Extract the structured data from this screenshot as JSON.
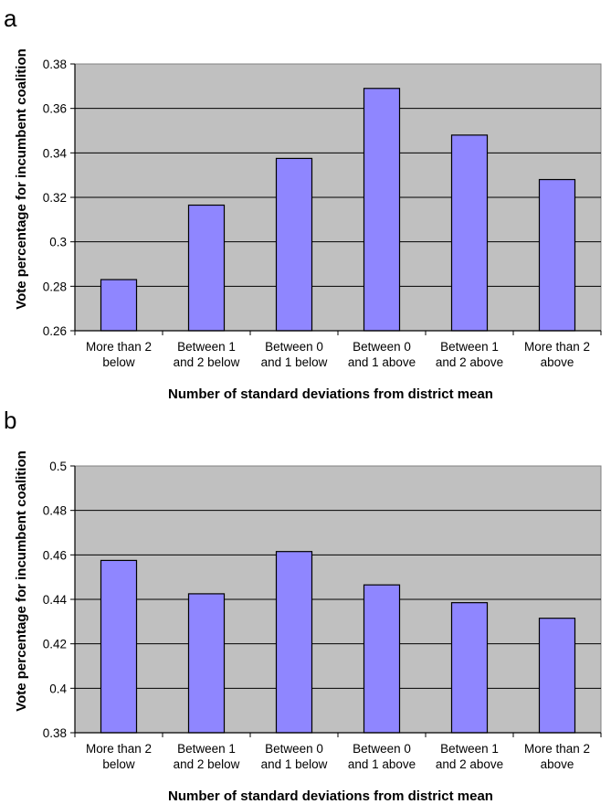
{
  "chart_data": [
    {
      "type": "bar",
      "panel_label": "a",
      "categories": [
        [
          "More than 2",
          "below"
        ],
        [
          "Between 1",
          "and 2 below"
        ],
        [
          "Between 0",
          "and 1 below"
        ],
        [
          "Between 0",
          "and 1 above"
        ],
        [
          "Between 1",
          "and 2 above"
        ],
        [
          "More than 2",
          "above"
        ]
      ],
      "values": [
        0.283,
        0.3165,
        0.3375,
        0.369,
        0.348,
        0.328
      ],
      "xlabel": "Number of standard deviations from district mean",
      "ylabel": "Vote percentage for incumbent coalition",
      "ylim": [
        0.26,
        0.38
      ],
      "yticks": [
        "0.26",
        "0.28",
        "0.3",
        "0.32",
        "0.34",
        "0.36",
        "0.38"
      ],
      "grid": true,
      "legend": "none",
      "colors": {
        "bar_fill": "#8f86ff",
        "plot_bg": "#c0c0c0",
        "gridline": "#000000"
      }
    },
    {
      "type": "bar",
      "panel_label": "b",
      "categories": [
        [
          "More than 2",
          "below"
        ],
        [
          "Between 1",
          "and 2 below"
        ],
        [
          "Between 0",
          "and 1 below"
        ],
        [
          "Between 0",
          "and 1 above"
        ],
        [
          "Between 1",
          "and 2 above"
        ],
        [
          "More than 2",
          "above"
        ]
      ],
      "values": [
        0.4575,
        0.4425,
        0.4615,
        0.4465,
        0.4385,
        0.4315
      ],
      "xlabel": "Number of standard deviations from district mean",
      "ylabel": "Vote percentage for incumbent coalition",
      "ylim": [
        0.38,
        0.5
      ],
      "yticks": [
        "0.38",
        "0.4",
        "0.42",
        "0.44",
        "0.46",
        "0.48",
        "0.5"
      ],
      "grid": true,
      "legend": "none",
      "colors": {
        "bar_fill": "#8f86ff",
        "plot_bg": "#c0c0c0",
        "gridline": "#000000"
      }
    }
  ]
}
